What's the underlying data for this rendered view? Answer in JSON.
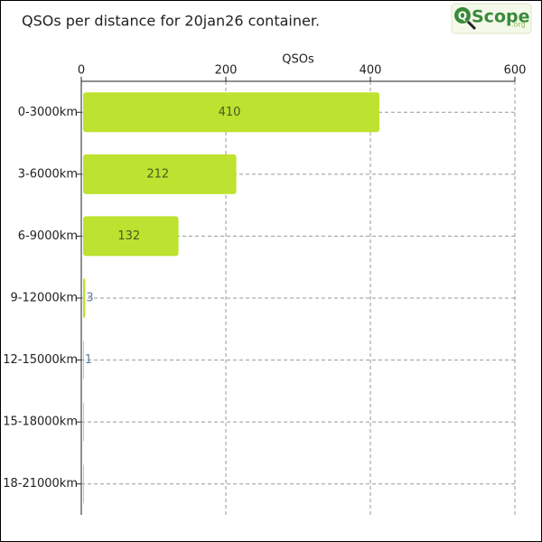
{
  "chart_data": {
    "type": "barh",
    "title": "QSOs per distance for 20jan26 container.",
    "logo": {
      "mark": "Q",
      "text": "Scope",
      "suffix": ".org"
    },
    "xlabel": "QSOs",
    "categories": [
      "0-3000km",
      "3-6000km",
      "6-9000km",
      "9-12000km",
      "12-15000km",
      "15-18000km",
      "18-21000km"
    ],
    "values": [
      410,
      212,
      132,
      3,
      1,
      0,
      0
    ],
    "color": "#bde22f",
    "xlim": [
      0,
      600
    ],
    "xticks": [
      0,
      200,
      400,
      600
    ],
    "grid": true
  }
}
